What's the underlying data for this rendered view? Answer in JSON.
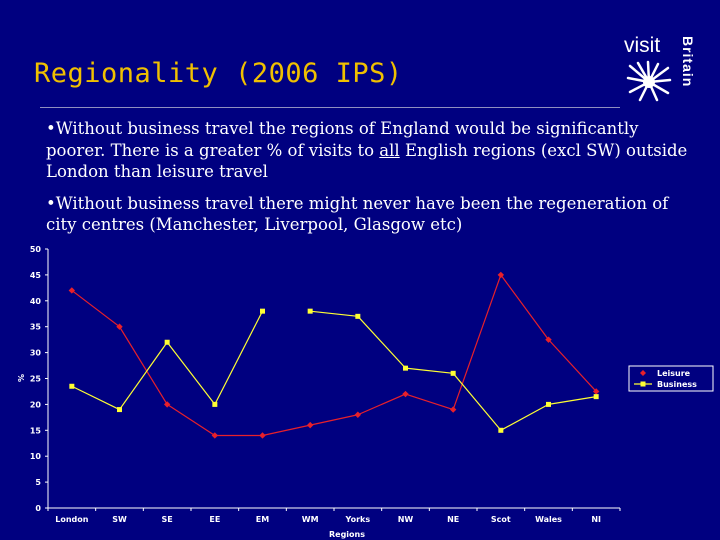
{
  "slide": {
    "title": "Regionality (2006 IPS)",
    "logo_visit": "visit",
    "logo_britain": "Britain",
    "bullets": [
      {
        "prefix": "•Without business travel the regions of England would be significantly poorer. There is a greater % of visits to ",
        "emphasis": "all",
        "suffix": " English regions (excl SW) outside London than leisure travel"
      },
      {
        "prefix": "•Without business travel there might never have been the regeneration of city centres (Manchester, Liverpool, Glasgow etc)",
        "emphasis": "",
        "suffix": ""
      }
    ]
  },
  "chart_data": {
    "type": "line",
    "title": "",
    "xlabel": "Regions",
    "ylabel": "%",
    "ylim": [
      0,
      50
    ],
    "yticks": [
      0,
      5,
      10,
      15,
      20,
      25,
      30,
      35,
      40,
      45,
      50
    ],
    "categories": [
      "London",
      "SW",
      "SE",
      "EE",
      "EM",
      "WM",
      "Yorks",
      "NW",
      "NE",
      "Scot",
      "Wales",
      "NI"
    ],
    "legend_position": "right",
    "grid": false,
    "series": [
      {
        "name": "Leisure",
        "color": "#e8202a",
        "marker": "diamond",
        "values": [
          42,
          35,
          20,
          14,
          14,
          16,
          18,
          22,
          19,
          45,
          32.5,
          22.5
        ],
        "connected": [
          true,
          true,
          true,
          true,
          true,
          true,
          true,
          true,
          true,
          true,
          true
        ]
      },
      {
        "name": "Business",
        "color": "#ffff33",
        "marker": "square",
        "values": [
          23.5,
          19,
          32,
          20,
          38,
          38,
          37,
          27,
          26,
          15,
          20,
          21.5
        ],
        "connected": [
          true,
          true,
          true,
          true,
          false,
          true,
          true,
          true,
          true,
          true,
          true
        ]
      }
    ]
  }
}
